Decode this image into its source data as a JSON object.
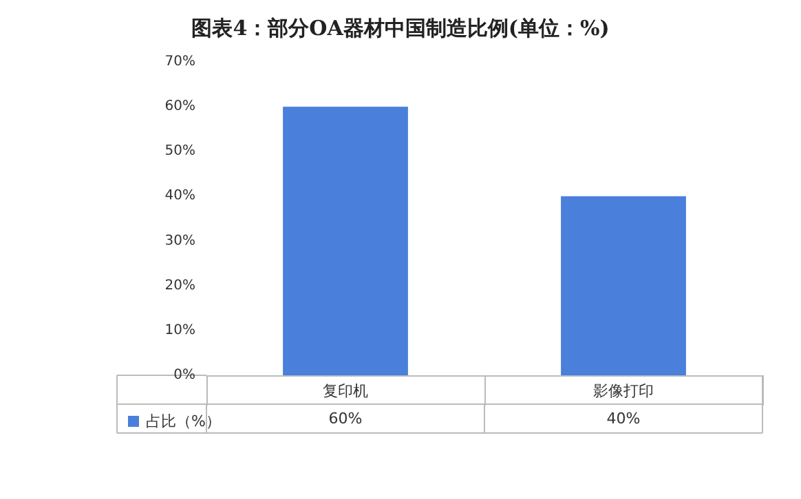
{
  "chart_data": {
    "type": "bar",
    "title": "图表4：部分OA器材中国制造比例(单位：%)",
    "categories": [
      "复印机",
      "影像打印"
    ],
    "series": [
      {
        "name": "占比（%）",
        "color": "#4a7fdb",
        "values": [
          60,
          40
        ],
        "value_labels": [
          "60%",
          "40%"
        ]
      }
    ],
    "ylim": [
      0,
      70
    ],
    "yticks": [
      {
        "value": 0,
        "label": "0%"
      },
      {
        "value": 10,
        "label": "10%"
      },
      {
        "value": 20,
        "label": "20%"
      },
      {
        "value": 30,
        "label": "30%"
      },
      {
        "value": 40,
        "label": "40%"
      },
      {
        "value": 50,
        "label": "50%"
      },
      {
        "value": 60,
        "label": "60%"
      },
      {
        "value": 70,
        "label": "70%"
      }
    ],
    "grid": false,
    "legend": "bottom left"
  }
}
